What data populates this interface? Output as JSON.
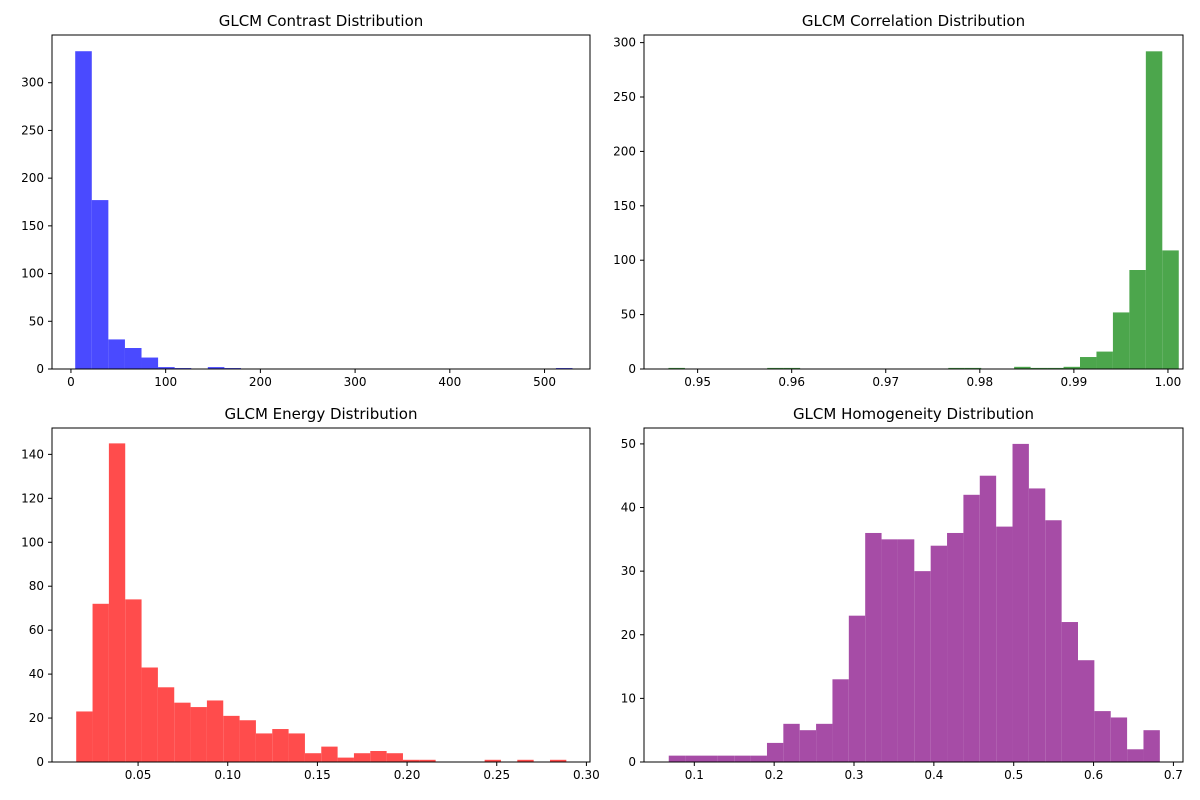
{
  "chart_data": [
    {
      "type": "bar",
      "title": "GLCM Contrast Distribution",
      "color": "#4a4aff",
      "xlim": [
        -20,
        548
      ],
      "ylim": [
        0,
        350
      ],
      "bin_start": 4.5,
      "bin_width": 17.5,
      "values": [
        333,
        177,
        31,
        22,
        12,
        2,
        1,
        0,
        2,
        1,
        0,
        0,
        0,
        0,
        0,
        0,
        0,
        0,
        0,
        0,
        0,
        0,
        0,
        0,
        0,
        0,
        0,
        0,
        0,
        1
      ],
      "xticks": [
        0,
        100,
        200,
        300,
        400,
        500
      ],
      "xtick_labels": [
        "0",
        "100",
        "200",
        "300",
        "400",
        "500"
      ],
      "yticks": [
        0,
        50,
        100,
        150,
        200,
        250,
        300
      ],
      "ytick_labels": [
        "0",
        "50",
        "100",
        "150",
        "200",
        "250",
        "300"
      ]
    },
    {
      "type": "bar",
      "title": "GLCM Correlation Distribution",
      "color": "#4ca64c",
      "xlim": [
        0.9443,
        1.0016
      ],
      "ylim": [
        0,
        307
      ],
      "bin_start": 0.9469,
      "bin_width": 0.00175,
      "values": [
        1,
        0,
        0,
        0,
        0,
        0,
        1,
        1,
        0,
        0,
        0,
        0,
        0,
        0,
        0,
        0,
        0,
        1,
        1,
        0,
        0,
        2,
        1,
        1,
        2,
        11,
        16,
        52,
        91,
        292,
        109
      ],
      "xticks": [
        0.95,
        0.96,
        0.97,
        0.98,
        0.99,
        1.0
      ],
      "xtick_labels": [
        "0.95",
        "0.96",
        "0.97",
        "0.98",
        "0.99",
        "1.00"
      ],
      "yticks": [
        0,
        50,
        100,
        150,
        200,
        250,
        300
      ],
      "ytick_labels": [
        "0",
        "50",
        "100",
        "150",
        "200",
        "250",
        "300"
      ]
    },
    {
      "type": "bar",
      "title": "GLCM Energy Distribution",
      "color": "#ff4c4c",
      "xlim": [
        0.002,
        0.302
      ],
      "ylim": [
        0,
        152
      ],
      "bin_start": 0.0155,
      "bin_width": 0.00911,
      "values": [
        23,
        72,
        145,
        74,
        43,
        34,
        27,
        25,
        28,
        21,
        19,
        13,
        15,
        13,
        4,
        7,
        2,
        4,
        5,
        4,
        1,
        1,
        0,
        0,
        0,
        1,
        0,
        1,
        0,
        1
      ],
      "xticks": [
        0.05,
        0.1,
        0.15,
        0.2,
        0.25,
        0.3
      ],
      "xtick_labels": [
        "0.05",
        "0.10",
        "0.15",
        "0.20",
        "0.25",
        "0.30"
      ],
      "yticks": [
        0,
        20,
        40,
        60,
        80,
        100,
        120,
        140
      ],
      "ytick_labels": [
        "0",
        "20",
        "40",
        "60",
        "80",
        "100",
        "120",
        "140"
      ]
    },
    {
      "type": "bar",
      "title": "GLCM Homogeneity Distribution",
      "color": "#a64ca6",
      "xlim": [
        0.037,
        0.712
      ],
      "ylim": [
        0,
        52.5
      ],
      "bin_start": 0.068,
      "bin_width": 0.0205,
      "values": [
        1,
        1,
        1,
        1,
        1,
        1,
        3,
        6,
        5,
        6,
        13,
        23,
        36,
        35,
        35,
        30,
        34,
        36,
        42,
        45,
        37,
        50,
        43,
        38,
        22,
        16,
        8,
        7,
        2,
        5
      ],
      "xticks": [
        0.1,
        0.2,
        0.3,
        0.4,
        0.5,
        0.6,
        0.7
      ],
      "xtick_labels": [
        "0.1",
        "0.2",
        "0.3",
        "0.4",
        "0.5",
        "0.6",
        "0.7"
      ],
      "yticks": [
        0,
        10,
        20,
        30,
        40,
        50
      ],
      "ytick_labels": [
        "0",
        "10",
        "20",
        "30",
        "40",
        "50"
      ]
    }
  ]
}
